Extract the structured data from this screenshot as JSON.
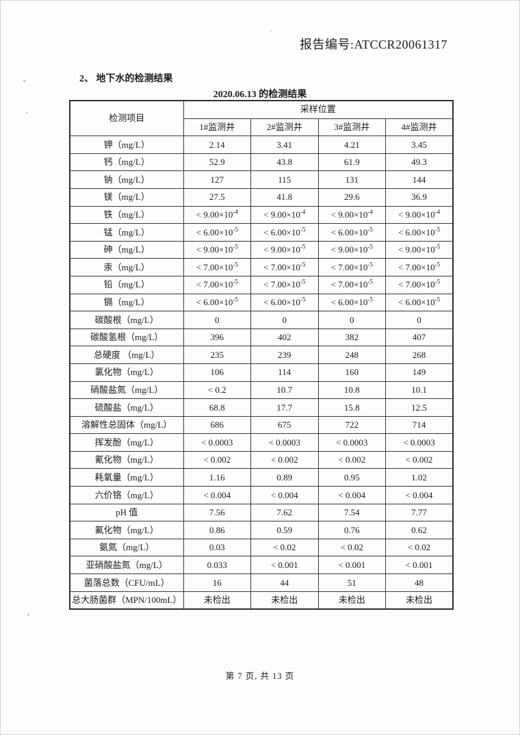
{
  "document": {
    "report_number": "报告编号:ATCCR20061317",
    "section_title": "2、 地下水的检测结果",
    "table_title": "2020.06.13 的检测结果",
    "footer_page_info": "第 7 页, 共 13 页"
  },
  "table": {
    "item_column_header": "检测项目",
    "sampling_location_header": "采样位置",
    "well_columns": [
      "1#监测井",
      "2#监测井",
      "3#监测井",
      "4#监测井"
    ],
    "rows": [
      {
        "item": "钾（mg/L）",
        "values": [
          "2.14",
          "3.41",
          "4.21",
          "3.45"
        ]
      },
      {
        "item": "钙（mg/L）",
        "values": [
          "52.9",
          "43.8",
          "61.9",
          "49.3"
        ]
      },
      {
        "item": "钠（mg/L）",
        "values": [
          "127",
          "115",
          "131",
          "144"
        ]
      },
      {
        "item": "镁（mg/L）",
        "values": [
          "27.5",
          "41.8",
          "29.6",
          "36.9"
        ]
      },
      {
        "item": "铁（mg/L）",
        "values": [
          "< 9.00×10^-4",
          "< 9.00×10^-4",
          "< 9.00×10^-4",
          "< 9.00×10^-4"
        ]
      },
      {
        "item": "锰（mg/L）",
        "values": [
          "< 6.00×10^-5",
          "< 6.00×10^-5",
          "< 6.00×10^-5",
          "< 6.00×10^-5"
        ]
      },
      {
        "item": "砷（mg/L）",
        "values": [
          "< 9.00×10^-5",
          "< 9.00×10^-5",
          "< 9.00×10^-5",
          "< 9.00×10^-5"
        ]
      },
      {
        "item": "汞（mg/L）",
        "values": [
          "< 7.00×10^-5",
          "< 7.00×10^-5",
          "< 7.00×10^-5",
          "< 7.00×10^-5"
        ]
      },
      {
        "item": "铅（mg/L）",
        "values": [
          "< 7.00×10^-5",
          "< 7.00×10^-5",
          "< 7.00×10^-5",
          "< 7.00×10^-5"
        ]
      },
      {
        "item": "镉（mg/L）",
        "values": [
          "< 6.00×10^-5",
          "< 6.00×10^-5",
          "< 6.00×10^-5",
          "< 6.00×10^-5"
        ]
      },
      {
        "item": "碳酸根（mg/L）",
        "values": [
          "0",
          "0",
          "0",
          "0"
        ]
      },
      {
        "item": "碳酸氢根（mg/L）",
        "values": [
          "396",
          "402",
          "382",
          "407"
        ]
      },
      {
        "item": "总硬度 （mg/L）",
        "values": [
          "235",
          "239",
          "248",
          "268"
        ]
      },
      {
        "item": "氯化物（mg/L）",
        "values": [
          "106",
          "114",
          "160",
          "149"
        ]
      },
      {
        "item": "硝酸盐氮（mg/L）",
        "values": [
          "< 0.2",
          "10.7",
          "10.8",
          "10.1"
        ]
      },
      {
        "item": "硫酸盐（mg/L）",
        "values": [
          "68.8",
          "17.7",
          "15.8",
          "12.5"
        ]
      },
      {
        "item": "溶解性总固体（mg/L）",
        "values": [
          "686",
          "675",
          "722",
          "714"
        ]
      },
      {
        "item": "挥发酚（mg/L）",
        "values": [
          "< 0.0003",
          "< 0.0003",
          "< 0.0003",
          "< 0.0003"
        ]
      },
      {
        "item": "氰化物（mg/L）",
        "values": [
          "< 0.002",
          "< 0.002",
          "< 0.002",
          "< 0.002"
        ]
      },
      {
        "item": "耗氧量（mg/L）",
        "values": [
          "1.16",
          "0.89",
          "0.95",
          "1.02"
        ]
      },
      {
        "item": "六价铬（mg/L）",
        "values": [
          "< 0.004",
          "< 0.004",
          "< 0.004",
          "< 0.004"
        ]
      },
      {
        "item": "pH 值",
        "values": [
          "7.56",
          "7.62",
          "7.54",
          "7.77"
        ]
      },
      {
        "item": "氟化物（mg/L）",
        "values": [
          "0.86",
          "0.59",
          "0.76",
          "0.62"
        ]
      },
      {
        "item": "氨氮（mg/L）",
        "values": [
          "0.03",
          "< 0.02",
          "< 0.02",
          "< 0.02"
        ]
      },
      {
        "item": "亚硝酸盐氮（mg/L）",
        "values": [
          "0.033",
          "< 0.001",
          "< 0.001",
          "< 0.001"
        ]
      },
      {
        "item": "菌落总数（CFU/mL）",
        "values": [
          "16",
          "44",
          "51",
          "48"
        ]
      },
      {
        "item": "总大肠菌群（MPN/100mL）",
        "values": [
          "未检出",
          "未检出",
          "未检出",
          "未检出"
        ]
      }
    ]
  }
}
